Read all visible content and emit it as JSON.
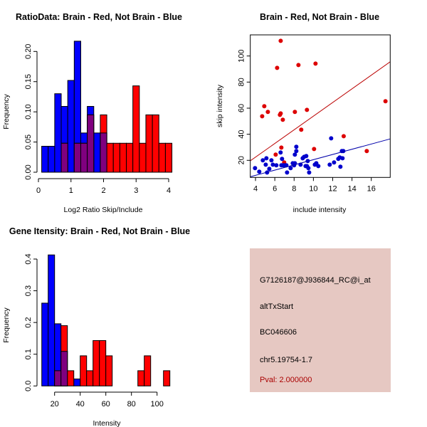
{
  "chart_data": [
    {
      "type": "histogram",
      "title": "RatioData: Brain - Red, Not Brain - Blue",
      "xlabel": "Log2 Ratio Skip/Include",
      "ylabel": "Frequency",
      "xlim": [
        0,
        4.2
      ],
      "ylim": [
        0,
        0.22
      ],
      "xticks": [
        0,
        1,
        2,
        3,
        4
      ],
      "xtick_labels": [
        "0",
        "1",
        "2",
        "3",
        "4"
      ],
      "yticks": [
        0,
        0.05,
        0.1,
        0.15,
        0.2
      ],
      "ytick_labels": [
        "0.00",
        "0.05",
        "0.10",
        "0.15",
        "0.20"
      ],
      "bin_edges": [
        0.1,
        0.3,
        0.5,
        0.7,
        0.9,
        1.1,
        1.3,
        1.5,
        1.7,
        1.9,
        2.1,
        2.3,
        2.5,
        2.7,
        2.9,
        3.1,
        3.3,
        3.5,
        3.7,
        3.9,
        4.1
      ],
      "series": [
        {
          "name": "Not Brain",
          "color": "#0000FF",
          "values": [
            0.043,
            0.043,
            0.13,
            0.109,
            0.152,
            0.217,
            0.065,
            0.109,
            0.065,
            0.065,
            0,
            0,
            0,
            0,
            0,
            0,
            0,
            0,
            0,
            0
          ]
        },
        {
          "name": "Brain",
          "color": "#FF0000",
          "values": [
            0,
            0,
            0,
            0.048,
            0,
            0.048,
            0.048,
            0.095,
            0,
            0.095,
            0.048,
            0.048,
            0.048,
            0.048,
            0.143,
            0.048,
            0.095,
            0.095,
            0.048,
            0.048
          ]
        }
      ],
      "overlap_color": "#7F007F"
    },
    {
      "type": "scatter",
      "title": "Brain - Red, Not Brain - Blue",
      "xlabel": "include intensity",
      "ylabel": "skip intensity",
      "xlim": [
        3.46,
        17.96
      ],
      "ylim": [
        6.9,
        116.2
      ],
      "xticks": [
        4,
        6,
        8,
        10,
        12,
        14,
        16
      ],
      "xtick_labels": [
        "4",
        "6",
        "8",
        "10",
        "12",
        "14",
        "16"
      ],
      "yticks": [
        20,
        40,
        60,
        80,
        100
      ],
      "ytick_labels": [
        "20",
        "40",
        "60",
        "80",
        "100"
      ],
      "series": [
        {
          "name": "Brain",
          "color": "#DD0000",
          "line": {
            "intercept": 1.47,
            "slope": 5.24,
            "color": "#BB0000"
          },
          "points": [
            [
              6.61,
              111.6
            ],
            [
              6.24,
              90.9
            ],
            [
              8.45,
              93.1
            ],
            [
              10.22,
              94.2
            ],
            [
              17.47,
              65.3
            ],
            [
              4.91,
              61.5
            ],
            [
              5.28,
              57.1
            ],
            [
              4.69,
              53.8
            ],
            [
              6.61,
              56
            ],
            [
              6.53,
              54.9
            ],
            [
              6.83,
              51.1
            ],
            [
              8.08,
              57.1
            ],
            [
              9.33,
              58.7
            ],
            [
              8.74,
              43.5
            ],
            [
              13.14,
              38.5
            ],
            [
              6.09,
              24.4
            ],
            [
              6.68,
              29.8
            ],
            [
              6.97,
              18.4
            ],
            [
              10.07,
              28.7
            ],
            [
              15.53,
              27.1
            ]
          ]
        },
        {
          "name": "Not Brain",
          "color": "#0000CC",
          "line": {
            "intercept": 0.5,
            "slope": 2.0,
            "color": "#0000AA"
          },
          "points": [
            [
              3.95,
              14
            ],
            [
              4.39,
              11.3
            ],
            [
              4.76,
              20
            ],
            [
              5.13,
              21.6
            ],
            [
              5.06,
              16.7
            ],
            [
              5.2,
              10.7
            ],
            [
              5.43,
              13.5
            ],
            [
              5.65,
              20
            ],
            [
              5.8,
              16.7
            ],
            [
              6.16,
              16.2
            ],
            [
              6.6,
              26
            ],
            [
              6.75,
              21.1
            ],
            [
              6.68,
              16.2
            ],
            [
              6.9,
              16.2
            ],
            [
              7.05,
              16.2
            ],
            [
              7.2,
              16.2
            ],
            [
              7.27,
              10.7
            ],
            [
              7.64,
              14
            ],
            [
              7.86,
              17.8
            ],
            [
              8.0,
              16.2
            ],
            [
              8.08,
              17.8
            ],
            [
              8.08,
              24.4
            ],
            [
              8.23,
              27.1
            ],
            [
              8.23,
              30.4
            ],
            [
              8.67,
              16.7
            ],
            [
              8.89,
              21.6
            ],
            [
              9.04,
              22.7
            ],
            [
              9.26,
              23.3
            ],
            [
              9.19,
              15.6
            ],
            [
              9.33,
              15.6
            ],
            [
              9.41,
              19.5
            ],
            [
              9.48,
              14
            ],
            [
              9.56,
              10.7
            ],
            [
              10.15,
              16.7
            ],
            [
              10.3,
              17.8
            ],
            [
              10.51,
              15.6
            ],
            [
              11.69,
              16.7
            ],
            [
              11.84,
              36.9
            ],
            [
              12.14,
              18.4
            ],
            [
              12.58,
              21.1
            ],
            [
              12.73,
              22.2
            ],
            [
              12.8,
              15.1
            ],
            [
              12.95,
              27.1
            ],
            [
              13.1,
              27.1
            ],
            [
              13.02,
              21.6
            ]
          ]
        }
      ]
    },
    {
      "type": "histogram",
      "title": "Gene Itensity: Brain - Red, Not Brain - Blue",
      "xlabel": "Intensity",
      "ylabel": "Frequency",
      "xlim": [
        10,
        115
      ],
      "ylim": [
        0,
        0.42
      ],
      "xticks": [
        20,
        40,
        60,
        80,
        100
      ],
      "xtick_labels": [
        "20",
        "40",
        "60",
        "80",
        "100"
      ],
      "yticks": [
        0,
        0.1,
        0.2,
        0.3,
        0.4
      ],
      "ytick_labels": [
        "0.0",
        "0.1",
        "0.2",
        "0.3",
        "0.4"
      ],
      "bin_edges": [
        10,
        15,
        20,
        25,
        30,
        35,
        40,
        45,
        50,
        55,
        60,
        65,
        70,
        75,
        80,
        85,
        90,
        95,
        100,
        105,
        110
      ],
      "series": [
        {
          "name": "Not Brain",
          "color": "#0000FF",
          "values": [
            0.261,
            0.413,
            0.196,
            0.109,
            0,
            0.022,
            0,
            0,
            0,
            0,
            0,
            0,
            0,
            0,
            0,
            0,
            0,
            0,
            0,
            0
          ]
        },
        {
          "name": "Brain",
          "color": "#FF0000",
          "values": [
            0,
            0,
            0.048,
            0.19,
            0.048,
            0,
            0.095,
            0.048,
            0.143,
            0.143,
            0.095,
            0,
            0,
            0,
            0,
            0.048,
            0.095,
            0,
            0,
            0.048
          ]
        }
      ],
      "overlap_color": "#7F007F"
    }
  ],
  "info_panel": {
    "background": "#E6C8C2",
    "probe_id": "G7126187@J936844_RC@i_at",
    "event_type": "altTxStart",
    "accession": "BC046606",
    "location": "chr5.19754-1.7",
    "pval": "Pval: 2.000000",
    "pval_color": "#AA0000"
  }
}
